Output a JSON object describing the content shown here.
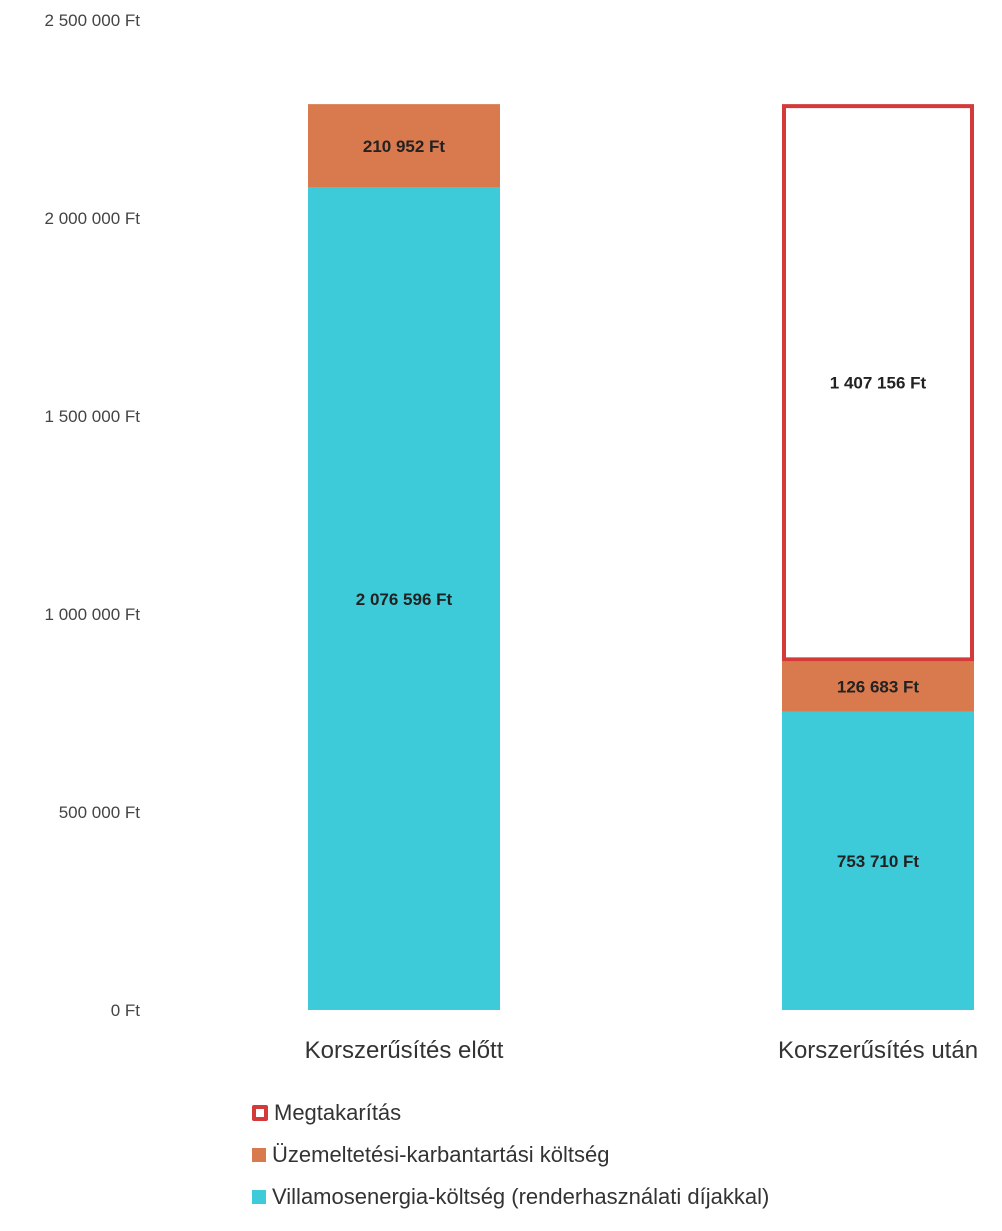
{
  "chart_data": {
    "type": "bar",
    "stacked": true,
    "categories": [
      "Korszerűsítés előtt",
      "Korszerűsítés után"
    ],
    "series": [
      {
        "name": "Villamosenergia-költség (renderhasználati díjakkal)",
        "values": [
          2076596,
          753710
        ],
        "labels": [
          "2 076 596 Ft",
          "753 710 Ft"
        ],
        "color": "#3ecbd9"
      },
      {
        "name": "Üzemeltetési-karbantartási költség",
        "values": [
          210952,
          126683
        ],
        "labels": [
          "210 952 Ft",
          "126 683 Ft"
        ],
        "color": "#d97a4e"
      },
      {
        "name": "Megtakarítás",
        "values": [
          0,
          1407156
        ],
        "labels": [
          "",
          "1 407 156 Ft"
        ],
        "color": "#d43a3a",
        "style": "outline"
      }
    ],
    "ylim": [
      0,
      2500000
    ],
    "yticks": [
      0,
      500000,
      1000000,
      1500000,
      2000000,
      2500000
    ],
    "ytick_labels": [
      "0 Ft",
      "500 000 Ft",
      "1 000 000 Ft",
      "1 500 000 Ft",
      "2 000 000 Ft",
      "2 500 000 Ft"
    ],
    "grid": false,
    "legend_position": "bottom",
    "legend_order": [
      "Megtakarítás",
      "Üzemeltetési-karbantartási költség",
      "Villamosenergia-költség (renderhasználati díjakkal)"
    ]
  },
  "legend": {
    "items": [
      {
        "label": "Megtakarítás",
        "color": "#d43a3a",
        "style": "outline"
      },
      {
        "label": "Üzemeltetési-karbantartási költség",
        "color": "#d97a4e",
        "style": "fill"
      },
      {
        "label": "Villamosenergia-költség (renderhasználati díjakkal)",
        "color": "#3ecbd9",
        "style": "fill"
      }
    ]
  }
}
